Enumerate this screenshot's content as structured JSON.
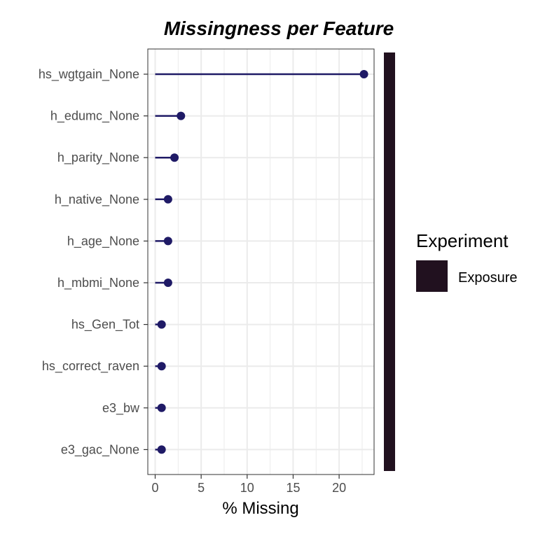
{
  "chart_data": {
    "type": "lollipop",
    "title": "Missingness per Feature",
    "xlabel": "% Missing",
    "ylabel": "",
    "xlim": [
      -0.8,
      23.8
    ],
    "x_ticks": [
      0,
      5,
      10,
      15,
      20
    ],
    "x_tick_labels": [
      "0",
      "5",
      "10",
      "15",
      "20"
    ],
    "grid": true,
    "categories": [
      "hs_wgtgain_None",
      "h_edumc_None",
      "h_parity_None",
      "h_native_None",
      "h_age_None",
      "h_mbmi_None",
      "hs_Gen_Tot",
      "hs_correct_raven",
      "e3_bw",
      "e3_gac_None"
    ],
    "values": [
      22.7,
      2.8,
      2.1,
      1.4,
      1.4,
      1.4,
      0.7,
      0.7,
      0.7,
      0.7
    ],
    "series": [
      {
        "name": "Exposure",
        "color": "#1f1a66"
      }
    ],
    "legend": {
      "title": "Experiment",
      "items": [
        {
          "label": "Exposure",
          "color": "#21111f"
        }
      ],
      "placement": "right"
    },
    "side_bar": {
      "color": "#21111f"
    },
    "colors": {
      "grid": "#ebebeb",
      "panel_border": "#333333",
      "point": "#1f1a66",
      "line": "#1f1a66"
    }
  }
}
